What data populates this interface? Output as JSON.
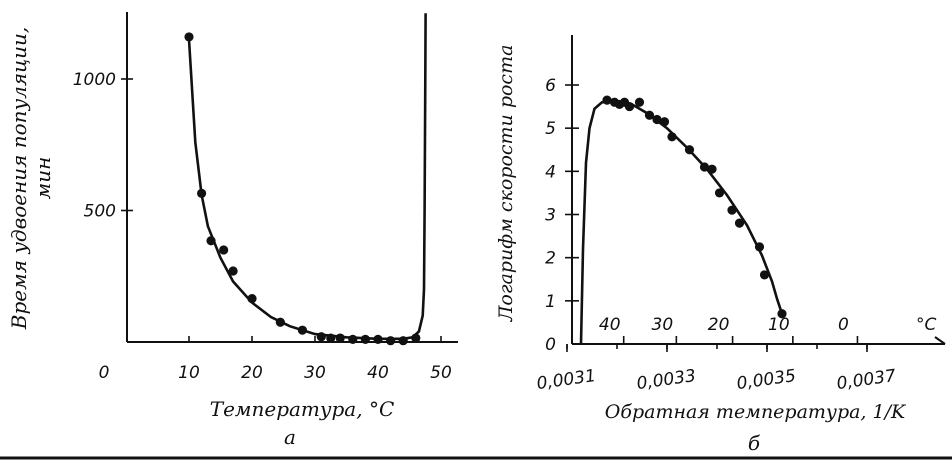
{
  "chart_data": [
    {
      "type": "scatter",
      "panel_label": "а",
      "xlabel": "Температура, °C",
      "ylabel": "Время удвоения популяции, мин",
      "xlim": [
        0,
        50
      ],
      "ylim": [
        0,
        1200
      ],
      "x_ticks": [
        "0",
        "10",
        "20",
        "30",
        "40",
        "50"
      ],
      "y_ticks": [
        "500",
        "1000"
      ],
      "points": [
        {
          "x": 10,
          "y": 1160
        },
        {
          "x": 12,
          "y": 565
        },
        {
          "x": 13.5,
          "y": 385
        },
        {
          "x": 15.5,
          "y": 350
        },
        {
          "x": 17,
          "y": 270
        },
        {
          "x": 20,
          "y": 165
        },
        {
          "x": 24.5,
          "y": 75
        },
        {
          "x": 28,
          "y": 45
        },
        {
          "x": 31,
          "y": 20
        },
        {
          "x": 32.5,
          "y": 15
        },
        {
          "x": 34,
          "y": 15
        },
        {
          "x": 36,
          "y": 10
        },
        {
          "x": 38,
          "y": 10
        },
        {
          "x": 40,
          "y": 10
        },
        {
          "x": 42,
          "y": 5
        },
        {
          "x": 44,
          "y": 5
        },
        {
          "x": 46,
          "y": 15
        }
      ],
      "fit_curve": [
        [
          10,
          1150
        ],
        [
          11,
          760
        ],
        [
          12,
          560
        ],
        [
          13,
          440
        ],
        [
          15,
          320
        ],
        [
          17,
          230
        ],
        [
          20,
          150
        ],
        [
          23,
          95
        ],
        [
          26,
          60
        ],
        [
          30,
          30
        ],
        [
          35,
          18
        ],
        [
          40,
          12
        ],
        [
          44,
          12
        ],
        [
          45.5,
          18
        ],
        [
          46.5,
          40
        ],
        [
          47.1,
          100
        ],
        [
          47.3,
          200
        ],
        [
          47.4,
          500
        ],
        [
          47.5,
          1000
        ],
        [
          47.55,
          1250
        ]
      ]
    },
    {
      "type": "scatter",
      "panel_label": "б",
      "xlabel": "Обратная температура, 1/K",
      "ylabel": "Логарифм скорости роста",
      "xlim": [
        0.0031,
        0.0038
      ],
      "ylim": [
        0,
        6
      ],
      "x_ticks": [
        "0,0031",
        "0,0033",
        "0,0035",
        "0,0037"
      ],
      "y_ticks": [
        "0",
        "1",
        "2",
        "3",
        "4",
        "5",
        "6"
      ],
      "top_ticks_label": "°C",
      "top_ticks": [
        "40",
        "30",
        "20",
        "10",
        "0"
      ],
      "top_tick_positions": [
        0.0031934,
        0.0032987,
        0.0034112,
        0.0035317,
        0.0036609
      ],
      "points": [
        {
          "x": 0.00318,
          "y": 5.65
        },
        {
          "x": 0.003195,
          "y": 5.6
        },
        {
          "x": 0.003205,
          "y": 5.55
        },
        {
          "x": 0.003215,
          "y": 5.6
        },
        {
          "x": 0.003225,
          "y": 5.5
        },
        {
          "x": 0.003245,
          "y": 5.6
        },
        {
          "x": 0.003265,
          "y": 5.3
        },
        {
          "x": 0.00328,
          "y": 5.2
        },
        {
          "x": 0.003295,
          "y": 5.15
        },
        {
          "x": 0.00331,
          "y": 4.8
        },
        {
          "x": 0.003345,
          "y": 4.5
        },
        {
          "x": 0.003375,
          "y": 4.1
        },
        {
          "x": 0.00339,
          "y": 4.05
        },
        {
          "x": 0.003405,
          "y": 3.5
        },
        {
          "x": 0.00343,
          "y": 3.1
        },
        {
          "x": 0.003445,
          "y": 2.8
        },
        {
          "x": 0.003485,
          "y": 2.25
        },
        {
          "x": 0.003495,
          "y": 1.6
        },
        {
          "x": 0.00353,
          "y": 0.7
        }
      ],
      "fit_curve": [
        [
          0.003128,
          0
        ],
        [
          0.003132,
          2.2
        ],
        [
          0.003138,
          4.2
        ],
        [
          0.003145,
          5.0
        ],
        [
          0.003155,
          5.45
        ],
        [
          0.00317,
          5.6
        ],
        [
          0.0032,
          5.62
        ],
        [
          0.00323,
          5.55
        ],
        [
          0.00326,
          5.35
        ],
        [
          0.0033,
          5.0
        ],
        [
          0.00334,
          4.55
        ],
        [
          0.00338,
          4.05
        ],
        [
          0.00342,
          3.45
        ],
        [
          0.00346,
          2.75
        ],
        [
          0.00349,
          2.05
        ],
        [
          0.00351,
          1.45
        ],
        [
          0.00352,
          1.05
        ],
        [
          0.00353,
          0.7
        ]
      ]
    }
  ]
}
